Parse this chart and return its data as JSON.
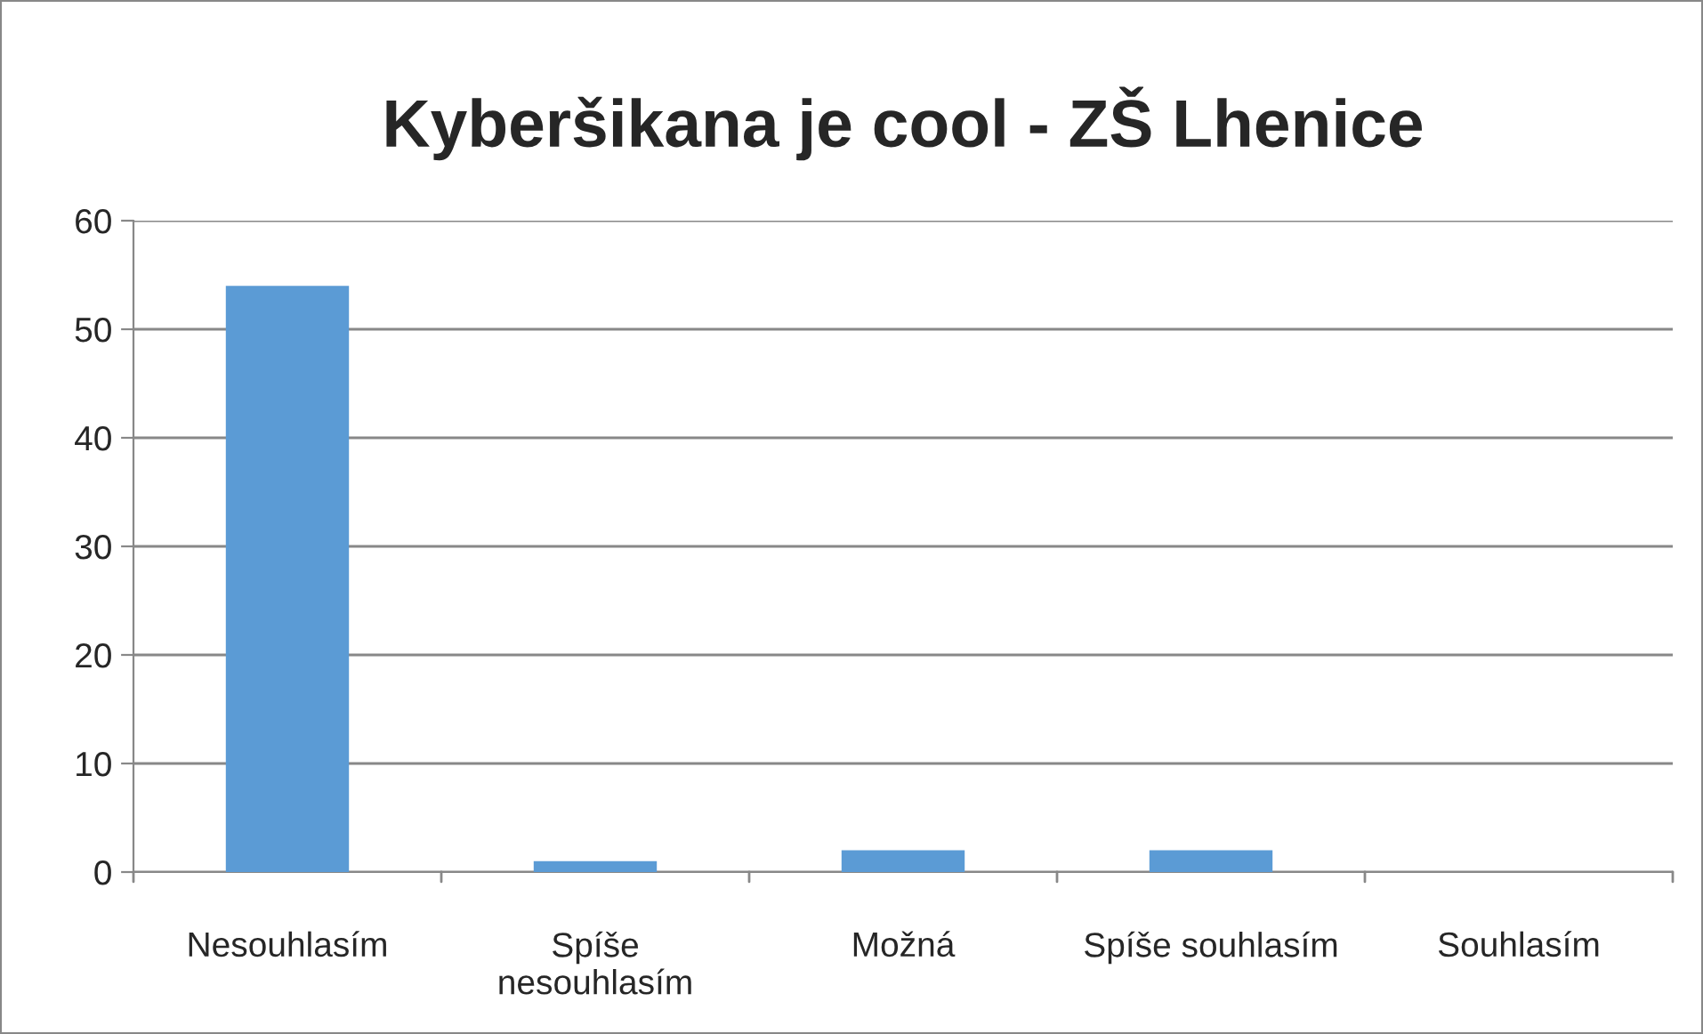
{
  "chart_data": {
    "type": "bar",
    "title": "Kyberšikana je cool - ZŠ Lhenice",
    "categories": [
      "Nesouhlasím",
      "Spíše nesouhlasím",
      "Možná",
      "Spíše souhlasím",
      "Souhlasím"
    ],
    "values": [
      54,
      1,
      2,
      2,
      0
    ],
    "color": "#5b9bd5",
    "ylim": [
      0,
      60
    ],
    "yticks": [
      0,
      10,
      20,
      30,
      40,
      50,
      60
    ],
    "grid": "y"
  }
}
